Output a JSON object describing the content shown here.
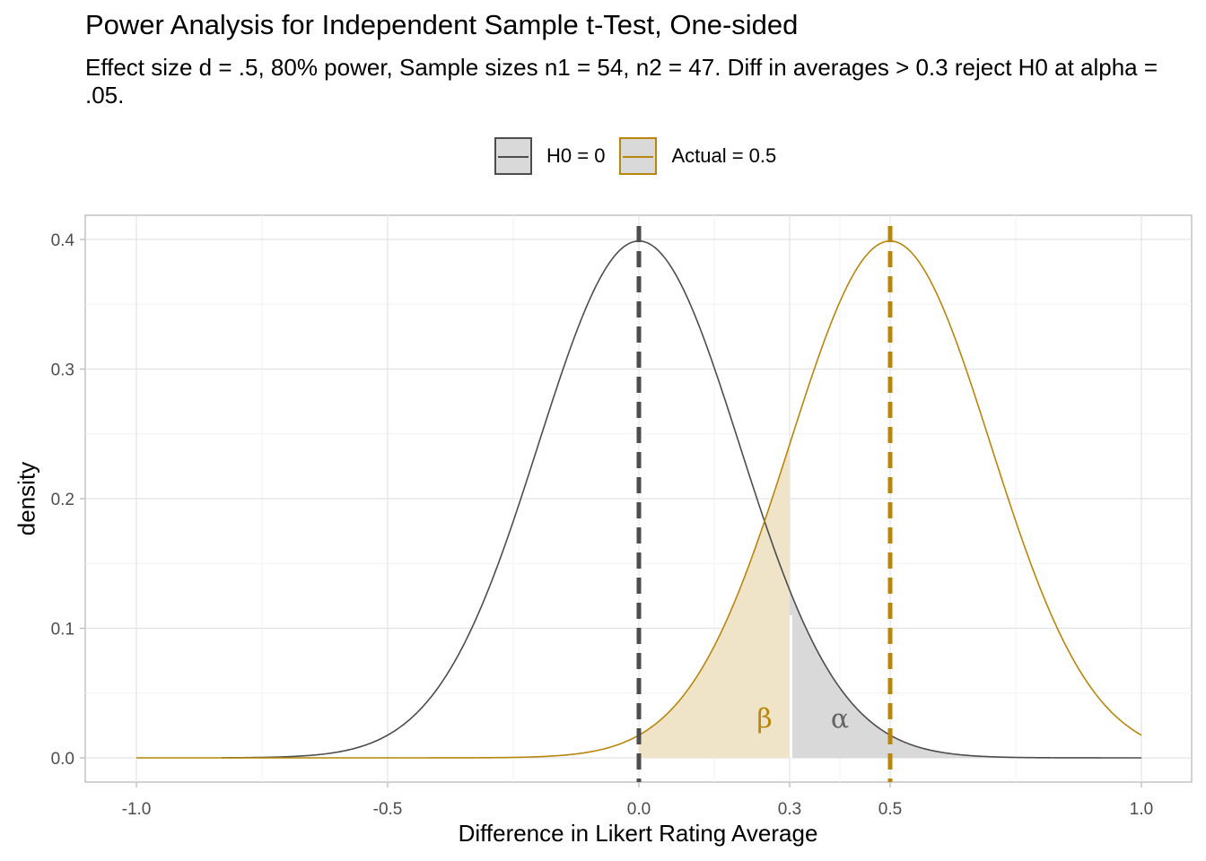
{
  "chart_data": {
    "type": "line",
    "title": "Power Analysis for Independent Sample t-Test, One-sided",
    "subtitle": "Effect size d = .5, 80% power, Sample sizes n1 = 54, n2 = 47. Diff in averages > 0.3 reject H0 at alpha = .05.",
    "xlabel": "Difference in Likert Rating Average",
    "ylabel": "density",
    "xlim": [
      -1.0,
      1.0
    ],
    "ylim": [
      0.0,
      0.4
    ],
    "x_ticks": [
      -1.0,
      -0.5,
      0.0,
      0.3,
      0.5,
      1.0
    ],
    "x_tick_labels": [
      "-1.0",
      "-0.5",
      "0.0",
      "0.3",
      "0.5",
      "1.0"
    ],
    "y_ticks": [
      0.0,
      0.1,
      0.2,
      0.3,
      0.4
    ],
    "y_tick_labels": [
      "0.0",
      "0.1",
      "0.2",
      "0.3",
      "0.4"
    ],
    "grid": true,
    "legend_position": "top",
    "series": [
      {
        "name": "H0 = 0",
        "distribution": "normal",
        "mean": 0.0,
        "sd": 0.2,
        "x_range": [
          -0.83,
          1.0
        ],
        "color": "#4d4d4d"
      },
      {
        "name": "Actual = 0.5",
        "distribution": "normal",
        "mean": 0.5,
        "sd": 0.2,
        "x_range": [
          -1.0,
          1.0
        ],
        "color": "#b8860b"
      }
    ],
    "vlines": [
      {
        "x": 0.0,
        "style": "dashed",
        "color": "#4d4d4d"
      },
      {
        "x": 0.5,
        "style": "dashed",
        "color": "#b8860b"
      }
    ],
    "shaded_regions": [
      {
        "label": "β",
        "under": "Actual = 0.5",
        "from": 0.0,
        "to": 0.3,
        "color": "#f0e4c8",
        "label_x": 0.25,
        "label_y": 0.03,
        "label_color": "#b8860b"
      },
      {
        "label": "α",
        "under": "H0 = 0",
        "from": 0.3,
        "to": 1.0,
        "color": "#d9d9d9",
        "label_x": 0.4,
        "label_y": 0.03,
        "label_color": "#666666"
      }
    ]
  }
}
